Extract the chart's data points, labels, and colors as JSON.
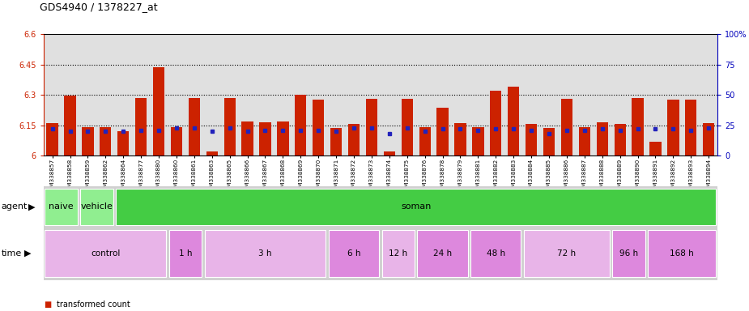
{
  "title": "GDS4940 / 1378227_at",
  "samples": [
    "GSM338857",
    "GSM338858",
    "GSM338859",
    "GSM338862",
    "GSM338864",
    "GSM338877",
    "GSM338880",
    "GSM338860",
    "GSM338861",
    "GSM338863",
    "GSM338865",
    "GSM338866",
    "GSM338867",
    "GSM338868",
    "GSM338869",
    "GSM338870",
    "GSM338871",
    "GSM338872",
    "GSM338873",
    "GSM338874",
    "GSM338875",
    "GSM338876",
    "GSM338878",
    "GSM338879",
    "GSM338881",
    "GSM338882",
    "GSM338883",
    "GSM338884",
    "GSM338885",
    "GSM338886",
    "GSM338887",
    "GSM338888",
    "GSM338889",
    "GSM338890",
    "GSM338891",
    "GSM338892",
    "GSM338893",
    "GSM338894"
  ],
  "red_values": [
    6.16,
    6.295,
    6.14,
    6.14,
    6.12,
    6.285,
    6.435,
    6.14,
    6.285,
    6.02,
    6.285,
    6.17,
    6.165,
    6.17,
    6.3,
    6.275,
    6.135,
    6.155,
    6.28,
    6.02,
    6.28,
    6.14,
    6.235,
    6.16,
    6.14,
    6.32,
    6.34,
    6.155,
    6.135,
    6.28,
    6.14,
    6.165,
    6.155,
    6.285,
    6.07,
    6.275,
    6.275,
    6.16
  ],
  "blue_values": [
    22,
    20,
    20,
    20,
    20,
    21,
    21,
    23,
    23,
    20,
    23,
    20,
    21,
    21,
    21,
    21,
    20,
    23,
    23,
    18,
    23,
    20,
    22,
    22,
    21,
    22,
    22,
    21,
    18,
    21,
    21,
    22,
    21,
    22,
    22,
    22,
    21,
    23
  ],
  "ylim_left": [
    6.0,
    6.6
  ],
  "ylim_right": [
    0,
    100
  ],
  "yticks_left": [
    6.0,
    6.15,
    6.3,
    6.45,
    6.6
  ],
  "yticks_right": [
    0,
    25,
    50,
    75,
    100
  ],
  "ytick_labels_left": [
    "6",
    "6.15",
    "6.3",
    "6.45",
    "6.6"
  ],
  "ytick_labels_right": [
    "0",
    "25",
    "50",
    "75",
    "100%"
  ],
  "hlines": [
    6.15,
    6.3,
    6.45
  ],
  "bar_color": "#cc2200",
  "dot_color": "#2222bb",
  "bg_color": "#e0e0e0",
  "agent_spans": [
    [
      0,
      2,
      "#90ee90",
      "naive"
    ],
    [
      2,
      4,
      "#90ee90",
      "vehicle"
    ],
    [
      4,
      38,
      "#44cc44",
      "soman"
    ]
  ],
  "time_spans": [
    [
      0,
      7,
      "#e8b4e8",
      "control"
    ],
    [
      7,
      9,
      "#dd88dd",
      "1 h"
    ],
    [
      9,
      16,
      "#e8b4e8",
      "3 h"
    ],
    [
      16,
      19,
      "#dd88dd",
      "6 h"
    ],
    [
      19,
      21,
      "#e8b4e8",
      "12 h"
    ],
    [
      21,
      24,
      "#dd88dd",
      "24 h"
    ],
    [
      24,
      27,
      "#dd88dd",
      "48 h"
    ],
    [
      27,
      32,
      "#e8b4e8",
      "72 h"
    ],
    [
      32,
      34,
      "#dd88dd",
      "96 h"
    ],
    [
      34,
      38,
      "#dd88dd",
      "168 h"
    ]
  ]
}
